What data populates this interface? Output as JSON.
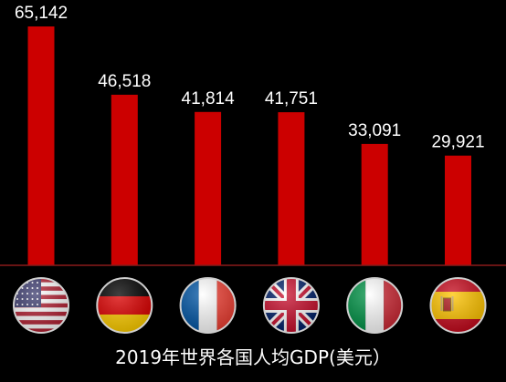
{
  "chart_data": {
    "type": "bar",
    "title": "2019年世界各国人均GDP(美元）",
    "categories": [
      "USA",
      "Germany",
      "France",
      "UK",
      "Italy",
      "Spain"
    ],
    "values": [
      65142,
      46518,
      41814,
      41751,
      33091,
      29921
    ],
    "value_labels": [
      "65,142",
      "46,518",
      "41,814",
      "41,751",
      "33,091",
      "29,921"
    ],
    "flags": [
      "us-flag",
      "de-flag",
      "fr-flag",
      "uk-flag",
      "it-flag",
      "es-flag"
    ],
    "ylim": [
      0,
      70000
    ],
    "grid": false,
    "legend": "none"
  },
  "colors": {
    "background": "#000000",
    "bar": "#cc0000",
    "axis": "#8b1a1a",
    "label": "#ffffff"
  }
}
